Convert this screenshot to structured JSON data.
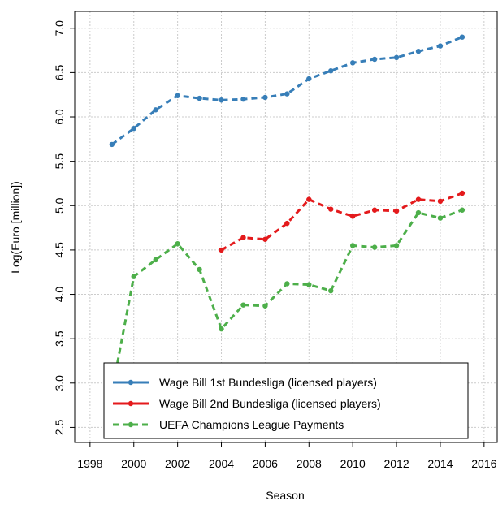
{
  "chart_data": {
    "type": "line",
    "x_label": "Season",
    "y_label": "Log(Euro [million])",
    "x": [
      1999,
      2000,
      2001,
      2002,
      2003,
      2004,
      2005,
      2006,
      2007,
      2008,
      2009,
      2010,
      2011,
      2012,
      2013,
      2014,
      2015
    ],
    "series": [
      {
        "name": "Wage Bill 1st Bundesliga (licensed players)",
        "color": "#377eb8",
        "values": [
          5.69,
          5.87,
          6.08,
          6.24,
          6.21,
          6.19,
          6.2,
          6.22,
          6.26,
          6.43,
          6.52,
          6.61,
          6.65,
          6.67,
          6.74,
          6.8,
          6.9
        ]
      },
      {
        "name": "Wage Bill 2nd Bundesliga (licensed players)",
        "color": "#e41a1c",
        "values": [
          null,
          null,
          null,
          null,
          null,
          4.5,
          4.64,
          4.62,
          4.8,
          5.07,
          4.96,
          4.88,
          4.95,
          4.94,
          5.07,
          5.05,
          5.14
        ]
      },
      {
        "name": "UEFA Champions League Payments",
        "color": "#4daf4a",
        "values": [
          2.9,
          4.2,
          4.39,
          4.57,
          4.28,
          3.61,
          3.88,
          3.87,
          4.12,
          4.11,
          4.04,
          4.55,
          4.53,
          4.55,
          4.92,
          4.86,
          4.95
        ]
      }
    ],
    "xlim": [
      1997.3,
      2016.6
    ],
    "ylim": [
      2.33,
      7.19
    ],
    "xticks": [
      1998,
      2000,
      2002,
      2004,
      2006,
      2008,
      2010,
      2012,
      2014,
      2016
    ],
    "yticks": [
      2.5,
      {
        "value": 3,
        "label": "3.0"
      },
      3.5,
      {
        "value": 4,
        "label": "4.0"
      },
      4.5,
      {
        "value": 5,
        "label": "5.0"
      },
      5.5,
      {
        "value": 6,
        "label": "6.0"
      },
      6.5,
      {
        "value": 7,
        "label": "7.0"
      }
    ],
    "grid": true,
    "legend_position": "bottom"
  }
}
